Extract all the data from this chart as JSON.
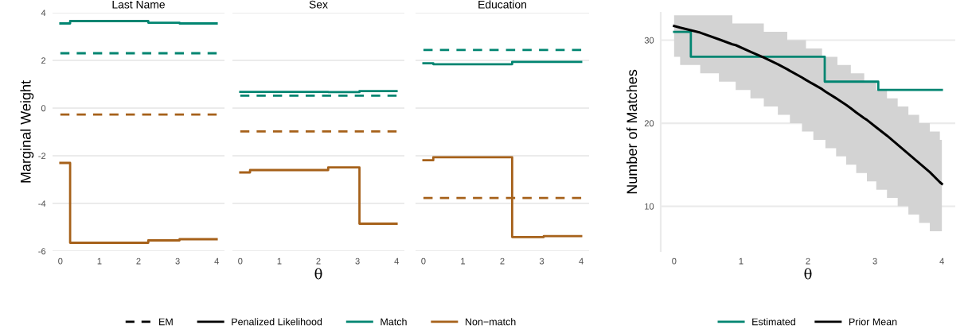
{
  "chart_data": [
    {
      "type": "step",
      "title": "Last Name",
      "ylabel": "Marginal Weight",
      "xlim": [
        -0.2,
        4.2
      ],
      "ylim": [
        -6,
        4
      ],
      "xticks": [
        0,
        1,
        2,
        3,
        4
      ],
      "yticks": [
        -6,
        -4,
        -2,
        0,
        2,
        4
      ],
      "grid": "y",
      "legend": "bottom",
      "series": [
        {
          "color": "#018571",
          "line_style": "solid",
          "x": [
            0,
            0.25,
            2.25,
            3.05,
            4
          ],
          "values": [
            3.55,
            3.65,
            3.58,
            3.55,
            3.55
          ]
        },
        {
          "color": "#a6611a",
          "line_style": "solid",
          "x": [
            0,
            0.25,
            2.25,
            3.05,
            4
          ],
          "values": [
            -2.3,
            -5.65,
            -5.55,
            -5.5,
            -5.5
          ]
        },
        {
          "type": "line",
          "color": "#018571",
          "line_style": "dashed",
          "x": [
            0,
            4
          ],
          "values": [
            2.3,
            2.3
          ]
        },
        {
          "type": "line",
          "color": "#a6611a",
          "line_style": "dashed",
          "x": [
            0,
            4
          ],
          "values": [
            -0.27,
            -0.27
          ]
        },
        {
          "type": "line",
          "name": "EM",
          "color": "#000000",
          "line_style": "dashed"
        },
        {
          "type": "line",
          "name": "Penalized Likelihood",
          "color": "#000000",
          "line_style": "solid"
        },
        {
          "type": "line",
          "name": "Match",
          "color": "#018571",
          "line_style": "solid"
        },
        {
          "type": "line",
          "name": "Non−match",
          "color": "#a6611a",
          "line_style": "solid"
        }
      ]
    },
    {
      "type": "step",
      "title": "Sex",
      "xlabel": "θ",
      "xlim": [
        -0.2,
        4.2
      ],
      "ylim": [
        -6,
        4
      ],
      "xticks": [
        0,
        1,
        2,
        3,
        4
      ],
      "yticks": [
        -6,
        -4,
        -2,
        0,
        2,
        4
      ],
      "grid": "y",
      "tick_labels": "x",
      "series": [
        {
          "color": "#018571",
          "line_style": "solid",
          "x": [
            0,
            0.25,
            2.25,
            3.05,
            4
          ],
          "values": [
            0.68,
            0.68,
            0.67,
            0.71,
            0.71
          ]
        },
        {
          "color": "#a6611a",
          "line_style": "solid",
          "x": [
            0,
            0.25,
            2.25,
            3.05,
            4
          ],
          "values": [
            -2.7,
            -2.6,
            -2.49,
            -4.85,
            -4.85
          ]
        },
        {
          "type": "line",
          "color": "#018571",
          "line_style": "dashed",
          "x": [
            0,
            4
          ],
          "values": [
            0.52,
            0.52
          ]
        },
        {
          "type": "line",
          "color": "#a6611a",
          "line_style": "dashed",
          "x": [
            0,
            4
          ],
          "values": [
            -0.98,
            -0.98
          ]
        }
      ]
    },
    {
      "type": "step",
      "title": "Education",
      "xlim": [
        -0.2,
        4.2
      ],
      "ylim": [
        -6,
        4
      ],
      "xticks": [
        0,
        1,
        2,
        3,
        4
      ],
      "yticks": [
        -6,
        -4,
        -2,
        0,
        2,
        4
      ],
      "grid": "y",
      "tick_labels": "x",
      "series": [
        {
          "color": "#018571",
          "line_style": "solid",
          "x": [
            0,
            0.25,
            2.25,
            3.05,
            4
          ],
          "values": [
            1.88,
            1.84,
            1.94,
            1.94,
            1.94
          ]
        },
        {
          "color": "#a6611a",
          "line_style": "solid",
          "x": [
            0,
            0.25,
            2.25,
            3.05,
            4
          ],
          "values": [
            -2.19,
            -2.06,
            -5.41,
            -5.37,
            -5.37
          ]
        },
        {
          "type": "line",
          "color": "#018571",
          "line_style": "dashed",
          "x": [
            0,
            4
          ],
          "values": [
            2.44,
            2.44
          ]
        },
        {
          "type": "line",
          "color": "#a6611a",
          "line_style": "dashed",
          "x": [
            0,
            4
          ],
          "values": [
            -3.77,
            -3.77
          ]
        }
      ]
    },
    {
      "type": "step",
      "xlabel": "θ",
      "ylabel": "Number of Matches",
      "xlim": [
        -0.2,
        4.2
      ],
      "ylim": [
        4.6,
        33.3
      ],
      "xticks": [
        0,
        1,
        2,
        3,
        4
      ],
      "yticks": [
        10,
        20,
        30
      ],
      "grid": "y",
      "legend": "bottom",
      "series": [
        {
          "name": "Estimated",
          "color": "#018571",
          "line_style": "solid",
          "x": [
            0,
            0.25,
            2.25,
            3.05,
            4
          ],
          "values": [
            31,
            28,
            25,
            24,
            24
          ]
        },
        {
          "type": "line",
          "name": "Prior Mean",
          "color": "#000000",
          "line_style": "solid",
          "x": [
            0,
            0.09,
            0.39,
            0.67,
            0.87,
            0.92,
            1.14,
            1.34,
            1.55,
            1.69,
            1.73,
            1.91,
            1.97,
            2.08,
            2.21,
            2.26,
            2.42,
            2.44,
            2.57,
            2.64,
            2.72,
            2.84,
            2.88,
            3.02,
            3.18,
            3.34,
            3.5,
            3.66,
            3.82,
            3.97,
            4
          ],
          "values": [
            31.7,
            31.5,
            30.9,
            30.1,
            29.5,
            29.4,
            28.6,
            27.9,
            27.1,
            26.5,
            26.3,
            25.5,
            25.2,
            24.7,
            24.1,
            23.8,
            23.0,
            22.9,
            22.2,
            21.8,
            21.3,
            20.6,
            20.4,
            19.5,
            18.5,
            17.4,
            16.3,
            15.2,
            14.1,
            12.9,
            12.7
          ],
          "upper": [
            33,
            33,
            33,
            33,
            32,
            32,
            32,
            31,
            31,
            30,
            30,
            30,
            29,
            29,
            28,
            28,
            28,
            27,
            27,
            26,
            26,
            25,
            25,
            24,
            23,
            22,
            21,
            20,
            19,
            18,
            18
          ],
          "lower": [
            28,
            27,
            26,
            25,
            25,
            24,
            23,
            22,
            21,
            21,
            20,
            19,
            19,
            18,
            18,
            17,
            16,
            16,
            15,
            15,
            14,
            14,
            13,
            12,
            11,
            10,
            9,
            8,
            7,
            7,
            7
          ]
        }
      ]
    }
  ]
}
